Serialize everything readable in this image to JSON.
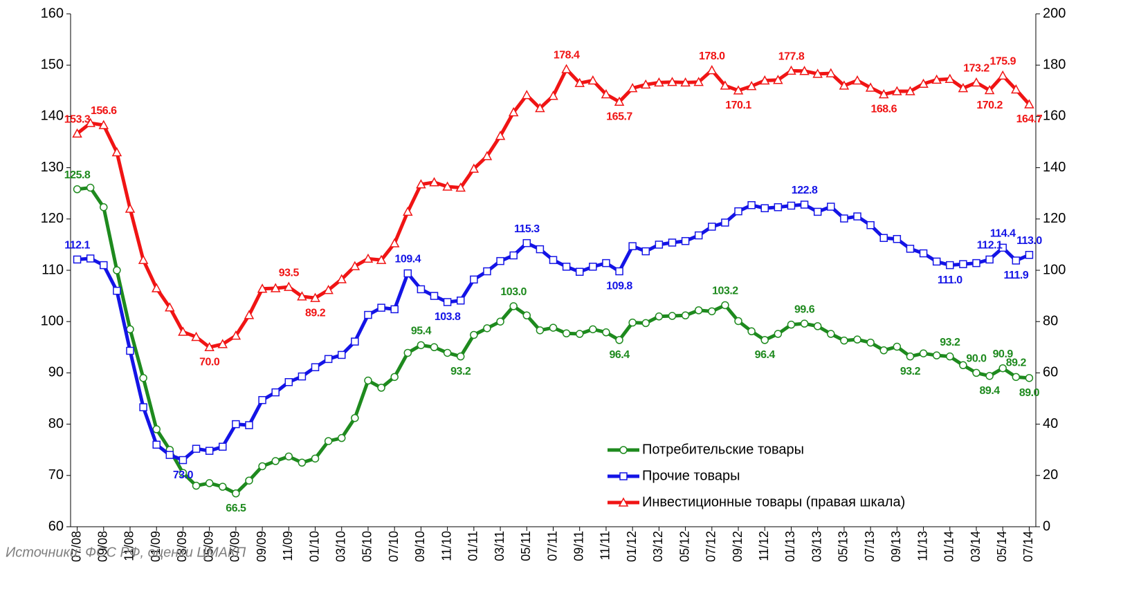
{
  "chart_data": {
    "type": "line",
    "source": "Источники: ФСС РФ, оценки ЦМАКП",
    "categories": [
      "07/08",
      null,
      "09/08",
      null,
      "11/08",
      null,
      "01/09",
      null,
      "03/09",
      null,
      "05/09",
      null,
      "07/09",
      null,
      "09/09",
      null,
      "11/09",
      null,
      "01/10",
      null,
      "03/10",
      null,
      "05/10",
      null,
      "07/10",
      null,
      "09/10",
      null,
      "11/10",
      null,
      "01/11",
      null,
      "03/11",
      null,
      "05/11",
      null,
      "07/11",
      null,
      "09/11",
      null,
      "11/11",
      null,
      "01/12",
      null,
      "03/12",
      null,
      "05/12",
      null,
      "07/12",
      null,
      "09/12",
      null,
      "11/12",
      null,
      "01/13",
      null,
      "03/13",
      null,
      "05/13",
      null,
      "07/13",
      null,
      "09/13",
      null,
      "11/13",
      null,
      "01/14",
      null,
      "03/14",
      null,
      "05/14",
      null,
      "07/14"
    ],
    "ylim": [
      60,
      160
    ],
    "yticks": [
      60,
      70,
      80,
      90,
      100,
      110,
      120,
      130,
      140,
      150,
      160
    ],
    "y2lim": [
      0,
      200
    ],
    "y2ticks": [
      0,
      20,
      40,
      60,
      80,
      100,
      120,
      140,
      160,
      180,
      200
    ],
    "grid": false,
    "legend": "lower right",
    "series": [
      {
        "name": "Потребительские товары",
        "color": "#1e8a1e",
        "marker": "circle",
        "axis": "y",
        "values": [
          125.8,
          126.1,
          122.3,
          110,
          98.5,
          89,
          79,
          75,
          70.5,
          68,
          68.5,
          67.8,
          66.5,
          69,
          71.8,
          72.8,
          73.7,
          72.5,
          73.3,
          76.7,
          77.3,
          81.2,
          88.5,
          87.1,
          89.2,
          93.9,
          95.4,
          95,
          93.9,
          93.2,
          97.4,
          98.7,
          100,
          103,
          101.2,
          98.3,
          98.8,
          97.7,
          97.6,
          98.5,
          97.9,
          96.4,
          99.8,
          99.7,
          101,
          101.1,
          101.2,
          102.2,
          102,
          103.2,
          100.1,
          98.1,
          96.4,
          97.6,
          99.4,
          99.6,
          99.1,
          97.6,
          96.3,
          96.5,
          95.9,
          94.4,
          95.1,
          93.2,
          93.8,
          93.4,
          93.2,
          91.5,
          90,
          89.4,
          90.9,
          89.2,
          89
        ],
        "value_labels": [
          "125.8",
          null,
          null,
          null,
          null,
          null,
          null,
          null,
          null,
          null,
          null,
          null,
          "66.5",
          null,
          null,
          null,
          null,
          null,
          null,
          null,
          null,
          null,
          null,
          null,
          null,
          null,
          "95.4",
          null,
          null,
          "93.2",
          null,
          null,
          null,
          "103.0",
          null,
          null,
          null,
          null,
          null,
          null,
          null,
          "96.4",
          null,
          null,
          null,
          null,
          null,
          null,
          null,
          "103.2",
          null,
          null,
          "96.4",
          null,
          null,
          "99.6",
          null,
          null,
          null,
          null,
          null,
          null,
          null,
          "93.2",
          null,
          null,
          "93.2",
          null,
          "90.0",
          "89.4",
          "90.9",
          "89.2",
          "89.0"
        ]
      },
      {
        "name": "Прочие товары",
        "color": "#1414e6",
        "marker": "square",
        "axis": "y",
        "values": [
          112.1,
          112.3,
          111,
          106,
          94.3,
          83.3,
          76,
          74,
          73,
          75.2,
          74.8,
          75.6,
          80,
          79.8,
          84.7,
          86.2,
          88.2,
          89.3,
          91.1,
          92.7,
          93.5,
          96.1,
          101.3,
          102.7,
          102.4,
          109.4,
          106.3,
          105,
          103.8,
          104.1,
          108.2,
          109.8,
          111.8,
          112.9,
          115.3,
          114.1,
          112,
          110.7,
          109.7,
          110.7,
          111.4,
          109.8,
          114.7,
          113.7,
          115,
          115.4,
          115.7,
          116.8,
          118.5,
          119.3,
          121.5,
          122.7,
          122.1,
          122.3,
          122.6,
          122.8,
          121.4,
          122.4,
          120.1,
          120.5,
          118.8,
          116.3,
          116.1,
          114.2,
          113.3,
          111.7,
          111,
          111.2,
          111.4,
          112.1,
          114.4,
          111.9,
          113
        ],
        "value_labels": [
          "112.1",
          null,
          null,
          null,
          null,
          null,
          null,
          null,
          "73.0",
          null,
          null,
          null,
          null,
          null,
          null,
          null,
          null,
          null,
          null,
          null,
          null,
          null,
          null,
          null,
          null,
          "109.4",
          null,
          null,
          "103.8",
          null,
          null,
          null,
          null,
          null,
          "115.3",
          null,
          null,
          null,
          null,
          null,
          null,
          "109.8",
          null,
          null,
          null,
          null,
          null,
          null,
          null,
          null,
          null,
          null,
          null,
          null,
          null,
          "122.8",
          null,
          null,
          null,
          null,
          null,
          null,
          null,
          null,
          null,
          null,
          "111.0",
          null,
          null,
          "112.1",
          "114.4",
          "111.9",
          "113.0"
        ]
      },
      {
        "name": "Инвестиционные товары (правая шкала)",
        "color": "#f01414",
        "marker": "triangle",
        "axis": "y2",
        "values": [
          153.3,
          157.4,
          156.6,
          146,
          124,
          104,
          93,
          85.5,
          76,
          74,
          70,
          71.2,
          74.5,
          82.5,
          92.8,
          93,
          93.5,
          89.8,
          89.2,
          92.3,
          96.5,
          101.6,
          104.5,
          104,
          110.5,
          122.8,
          133.5,
          134.3,
          132.6,
          132.2,
          139.6,
          144.5,
          152.4,
          161.6,
          168.3,
          163.2,
          168,
          178.4,
          173,
          174,
          168.6,
          165.7,
          171,
          172.4,
          173.2,
          173.4,
          173.2,
          173.4,
          178,
          172,
          170.1,
          171.8,
          174,
          174.2,
          177.8,
          177.7,
          176.6,
          176.8,
          172,
          174,
          171.2,
          168.6,
          169.8,
          169.8,
          172.7,
          174.3,
          174.6,
          171,
          173.2,
          170.2,
          175.9,
          170.5,
          164.7
        ],
        "value_labels": [
          "153.3",
          null,
          "156.6",
          null,
          null,
          null,
          null,
          null,
          null,
          null,
          "70.0",
          null,
          null,
          null,
          null,
          null,
          "93.5",
          null,
          "89.2",
          null,
          null,
          null,
          null,
          null,
          null,
          null,
          null,
          null,
          null,
          null,
          null,
          null,
          null,
          null,
          null,
          null,
          null,
          "178.4",
          null,
          null,
          null,
          "165.7",
          null,
          null,
          null,
          null,
          null,
          null,
          "178.0",
          null,
          "170.1",
          null,
          null,
          null,
          "177.8",
          null,
          null,
          null,
          null,
          null,
          null,
          "168.6",
          null,
          null,
          null,
          null,
          null,
          null,
          "173.2",
          "170.2",
          "175.9",
          null,
          "164.7"
        ]
      }
    ]
  }
}
